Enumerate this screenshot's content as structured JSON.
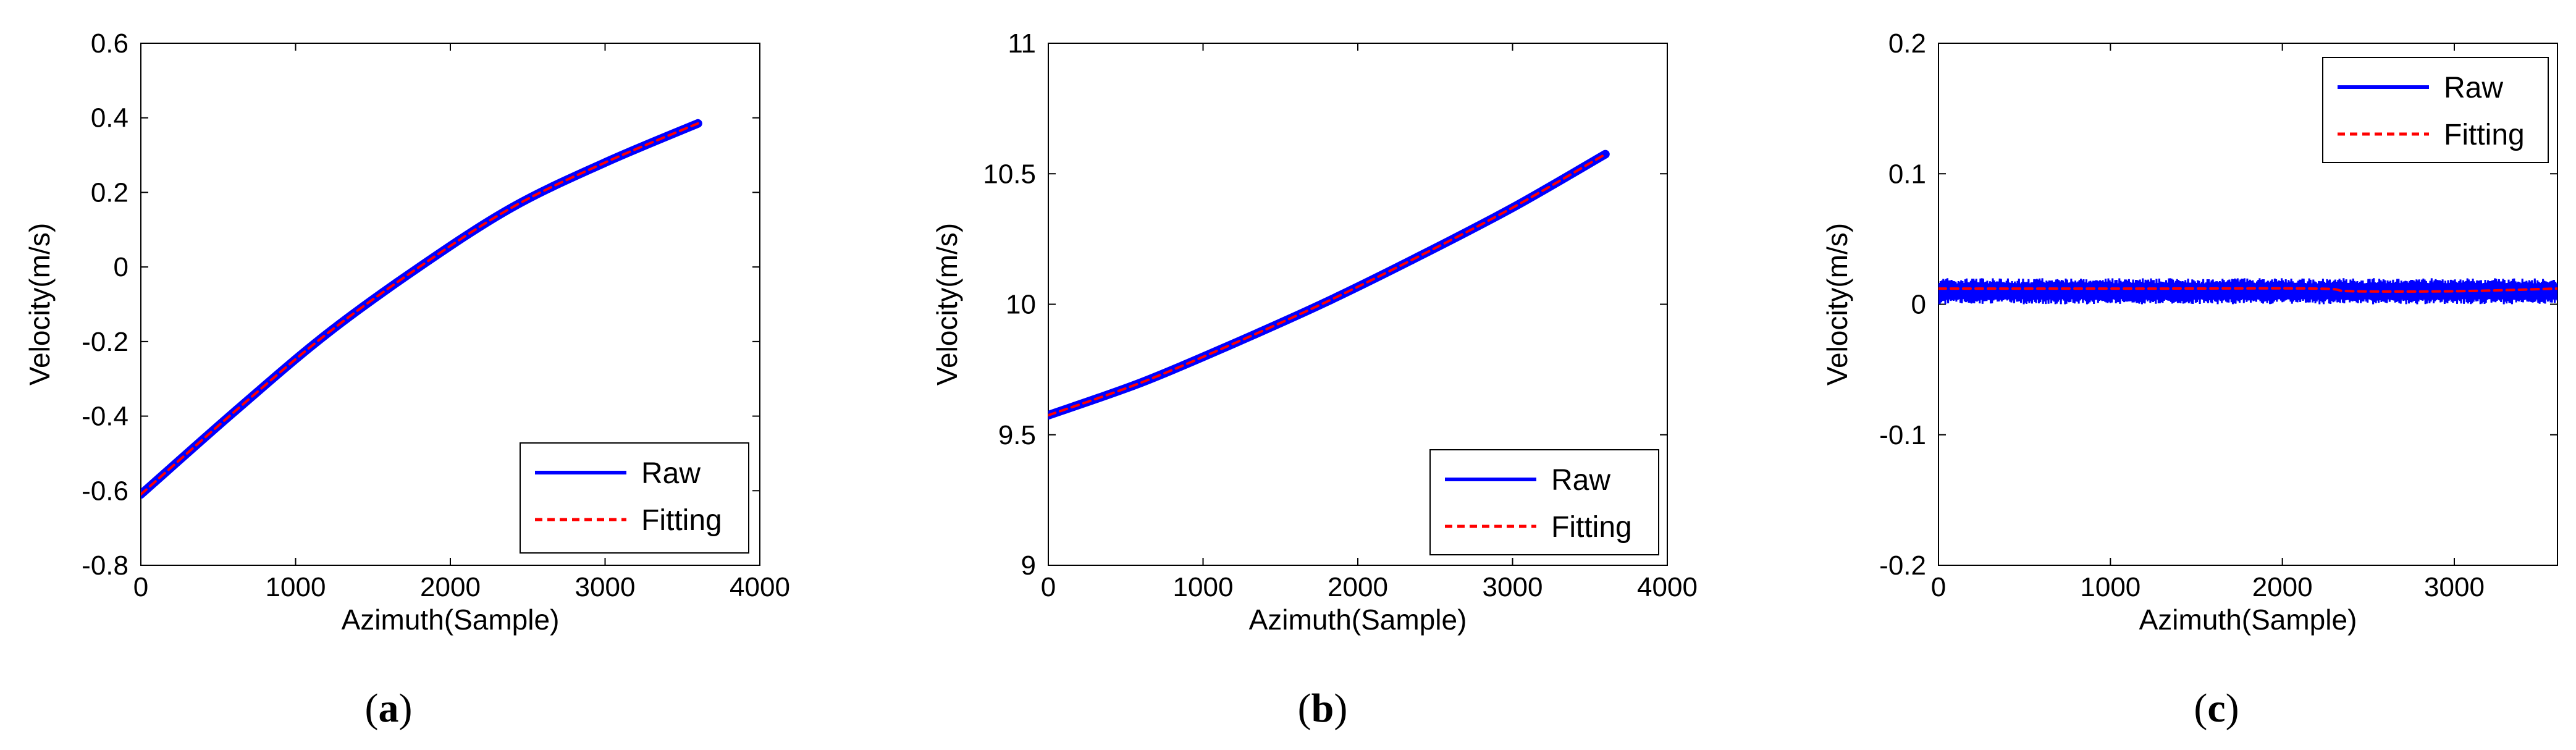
{
  "figure_captions": [
    "(a)",
    "(b)",
    "(c)"
  ],
  "chart_data": [
    {
      "type": "line",
      "panel": "a",
      "caption_letter": "a",
      "xlabel": "Azimuth(Sample)",
      "ylabel": "Velocity(m/s)",
      "xlim": [
        0,
        4000
      ],
      "ylim": [
        -0.8,
        0.6
      ],
      "xticks": [
        0,
        1000,
        2000,
        3000,
        4000
      ],
      "xtick_labels": [
        "0",
        "1000",
        "2000",
        "3000",
        "4000"
      ],
      "yticks": [
        -0.8,
        -0.6,
        -0.4,
        -0.2,
        0,
        0.2,
        0.4,
        0.6
      ],
      "ytick_labels": [
        "-0.8",
        "-0.6",
        "-0.4",
        "-0.2",
        "0",
        "0.2",
        "0.4",
        "0.6"
      ],
      "grid": false,
      "legend_position": "bottom-right",
      "series": [
        {
          "name": "Raw",
          "color": "#0000ff",
          "style": "solid",
          "x": [
            0,
            600,
            1200,
            1800,
            2400,
            3000,
            3600
          ],
          "y": [
            -0.61,
            -0.39,
            -0.18,
            0.0,
            0.16,
            0.28,
            0.385
          ]
        },
        {
          "name": "Fitting",
          "color": "#ff0000",
          "style": "dashed",
          "x": [
            0,
            600,
            1200,
            1800,
            2400,
            3000,
            3600
          ],
          "y": [
            -0.61,
            -0.39,
            -0.18,
            0.0,
            0.16,
            0.28,
            0.385
          ]
        }
      ]
    },
    {
      "type": "line",
      "panel": "b",
      "caption_letter": "b",
      "xlabel": "Azimuth(Sample)",
      "ylabel": "Velocity(m/s)",
      "xlim": [
        0,
        4000
      ],
      "ylim": [
        9,
        11
      ],
      "xticks": [
        0,
        1000,
        2000,
        3000,
        4000
      ],
      "xtick_labels": [
        "0",
        "1000",
        "2000",
        "3000",
        "4000"
      ],
      "yticks": [
        9,
        9.5,
        10,
        10.5,
        11
      ],
      "ytick_labels": [
        "9",
        "9.5",
        "10",
        "10.5",
        "11"
      ],
      "grid": false,
      "legend_position": "bottom-right",
      "series": [
        {
          "name": "Raw",
          "color": "#0000ff",
          "style": "solid",
          "x": [
            0,
            600,
            1200,
            1800,
            2400,
            3000,
            3600
          ],
          "y": [
            9.575,
            9.7,
            9.85,
            10.01,
            10.185,
            10.37,
            10.575
          ]
        },
        {
          "name": "Fitting",
          "color": "#ff0000",
          "style": "dashed",
          "x": [
            0,
            600,
            1200,
            1800,
            2400,
            3000,
            3600
          ],
          "y": [
            9.575,
            9.7,
            9.85,
            10.01,
            10.185,
            10.37,
            10.575
          ]
        }
      ]
    },
    {
      "type": "line",
      "panel": "c",
      "caption_letter": "c",
      "xlabel": "Azimuth(Sample)",
      "ylabel": "Velocity(m/s)",
      "xlim": [
        0,
        3600
      ],
      "ylim": [
        -0.2,
        0.2
      ],
      "xticks": [
        0,
        1000,
        2000,
        3000
      ],
      "xtick_labels": [
        "0",
        "1000",
        "2000",
        "3000"
      ],
      "yticks": [
        -0.2,
        -0.1,
        0,
        0.1,
        0.2
      ],
      "ytick_labels": [
        "-0.2",
        "-0.1",
        "0",
        "0.1",
        "0.2"
      ],
      "grid": false,
      "legend_position": "top-right",
      "series": [
        {
          "name": "Raw",
          "color": "#0000ff",
          "style": "noise-band",
          "x": [
            0,
            3600
          ],
          "y_mean": 0.01,
          "y_min": 0.0,
          "y_max": 0.02
        },
        {
          "name": "Fitting",
          "color": "#ff0000",
          "style": "dashed",
          "x": [
            0,
            1200,
            2200,
            2400,
            3000,
            3600
          ],
          "y": [
            0.012,
            0.012,
            0.012,
            0.01,
            0.01,
            0.012
          ]
        }
      ]
    }
  ]
}
